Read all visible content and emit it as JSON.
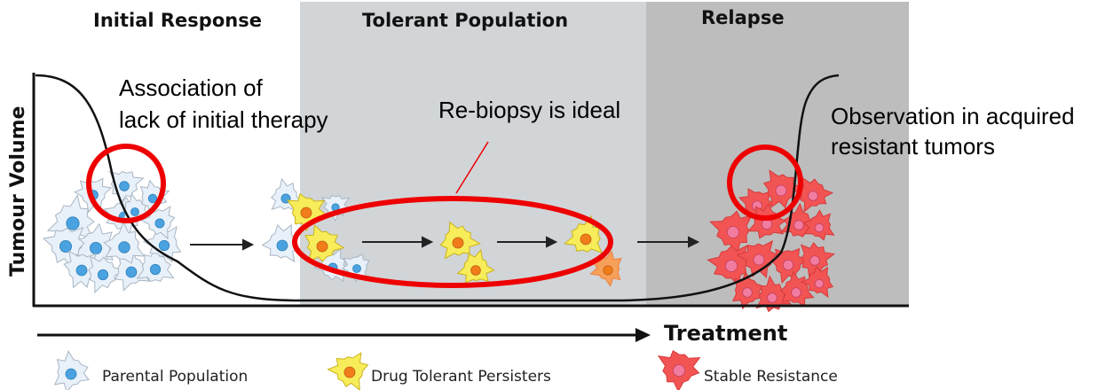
{
  "phases": [
    {
      "label": "Initial Response",
      "color": "#ffffff"
    },
    {
      "label": "Tolerant Population",
      "color": "#d1d5d8"
    },
    {
      "label": "Relapse",
      "color": "#bdbdbd"
    }
  ],
  "axes": {
    "y_label": "Tumour Volume",
    "x_label": "Treatment"
  },
  "annotations": {
    "initial": [
      "Association of",
      "lack of initial therapy"
    ],
    "tolerant": "Re-biopsy is ideal",
    "relapse": [
      "Observation in acquired",
      "resistant tumors"
    ],
    "highlight_color": "#ee0000"
  },
  "legend": [
    {
      "label": "Parental Population",
      "icon": "parental-cell-icon",
      "color": "#e8f1fa"
    },
    {
      "label": "Drug Tolerant Persisters",
      "icon": "persister-cell-icon",
      "color": "#f7ec5a"
    },
    {
      "label": "Stable Resistance",
      "icon": "resistant-cell-icon",
      "color": "#f25454"
    }
  ]
}
